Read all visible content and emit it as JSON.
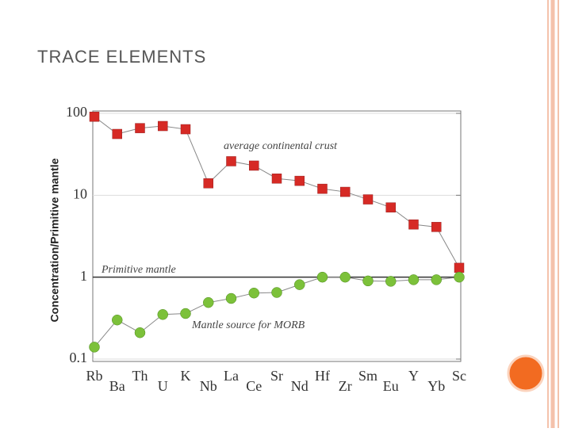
{
  "title": "TRACE ELEMENTS",
  "chart_data": {
    "type": "line",
    "y_label": "Concentration/Primitive mantle",
    "categories": [
      "Rb",
      "Ba",
      "Th",
      "U",
      "K",
      "Nb",
      "La",
      "Ce",
      "Sr",
      "Nd",
      "Hf",
      "Zr",
      "Sm",
      "Eu",
      "Y",
      "Yb",
      "Sc"
    ],
    "series": [
      {
        "name": "average continental crust",
        "color": "#d62a25",
        "marker": "square",
        "values": [
          91,
          56,
          66,
          70,
          64,
          14,
          26,
          23,
          16,
          15,
          12,
          11,
          8.9,
          7.1,
          4.4,
          4.1,
          1.3
        ]
      },
      {
        "name": "Mantle source for MORB",
        "color": "#7cc13a",
        "marker": "circle",
        "values": [
          0.14,
          0.3,
          0.21,
          0.35,
          0.36,
          0.49,
          0.55,
          0.64,
          0.65,
          0.81,
          1.0,
          1.0,
          0.9,
          0.89,
          0.93,
          0.93,
          1.0
        ]
      }
    ],
    "reference": {
      "label": "Primitive mantle",
      "value": 1
    },
    "ylim": [
      0.1,
      100
    ],
    "yticks": [
      100,
      10,
      1,
      0.1
    ],
    "log_y": true,
    "grid": true
  }
}
